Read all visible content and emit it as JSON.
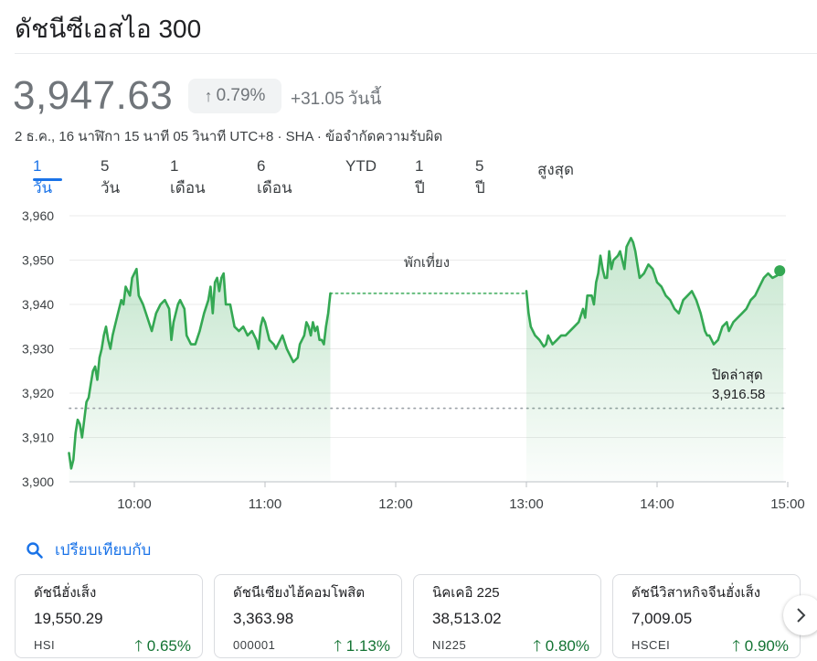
{
  "title": "ดัชนีซีเอสไอ 300",
  "quote": {
    "price": "3,947.63",
    "change_pct": "0.79%",
    "change_abs": "+31.05",
    "change_period": "วันนี้",
    "meta": "2 ธ.ค., 16 นาฬิกา 15 นาที 05 วินาที UTC+8 · SHA · ข้อจำกัดความรับผิด"
  },
  "tabs": [
    "1 วัน",
    "5 วัน",
    "1 เดือน",
    "6 เดือน",
    "YTD",
    "1 ปี",
    "5 ปี",
    "สูงสุด"
  ],
  "active_tab": "1 วัน",
  "chart_data": {
    "type": "line",
    "ylim": [
      3900,
      3960
    ],
    "y_ticks": [
      "3,960",
      "3,950",
      "3,940",
      "3,930",
      "3,920",
      "3,910",
      "3,900"
    ],
    "x_ticks": [
      "10:00",
      "11:00",
      "12:00",
      "13:00",
      "14:00",
      "15:00"
    ],
    "lunch_label": "พักเที่ยง",
    "prev_close_label": "ปิดล่าสุด",
    "prev_close_value": "3,916.58",
    "prev_close": 3916.58,
    "line_color": "#34a853",
    "morning": [
      [
        "09:30",
        3906.5
      ],
      [
        "09:31",
        3903
      ],
      [
        "09:32",
        3905
      ],
      [
        "09:33",
        3911
      ],
      [
        "09:34",
        3914
      ],
      [
        "09:35",
        3913
      ],
      [
        "09:36",
        3910
      ],
      [
        "09:37",
        3914
      ],
      [
        "09:38",
        3918
      ],
      [
        "09:39",
        3919
      ],
      [
        "09:40",
        3922
      ],
      [
        "09:41",
        3925
      ],
      [
        "09:42",
        3926
      ],
      [
        "09:43",
        3923
      ],
      [
        "09:44",
        3928
      ],
      [
        "09:45",
        3930
      ],
      [
        "09:46",
        3933
      ],
      [
        "09:47",
        3935
      ],
      [
        "09:48",
        3932
      ],
      [
        "09:49",
        3930
      ],
      [
        "09:50",
        3933
      ],
      [
        "09:51",
        3935
      ],
      [
        "09:52",
        3937
      ],
      [
        "09:53",
        3939
      ],
      [
        "09:54",
        3941
      ],
      [
        "09:55",
        3940
      ],
      [
        "09:56",
        3944
      ],
      [
        "09:57",
        3943
      ],
      [
        "09:58",
        3942
      ],
      [
        "09:59",
        3946
      ],
      [
        "10:01",
        3948
      ],
      [
        "10:02",
        3942
      ],
      [
        "10:04",
        3940
      ],
      [
        "10:06",
        3937
      ],
      [
        "10:08",
        3934
      ],
      [
        "10:10",
        3938
      ],
      [
        "10:12",
        3940
      ],
      [
        "10:14",
        3941
      ],
      [
        "10:16",
        3939
      ],
      [
        "10:17",
        3932
      ],
      [
        "10:18",
        3936
      ],
      [
        "10:20",
        3940
      ],
      [
        "10:21",
        3941
      ],
      [
        "10:23",
        3939
      ],
      [
        "10:24",
        3933
      ],
      [
        "10:26",
        3931
      ],
      [
        "10:28",
        3931
      ],
      [
        "10:30",
        3934
      ],
      [
        "10:32",
        3938
      ],
      [
        "10:34",
        3941
      ],
      [
        "10:35",
        3944
      ],
      [
        "10:36",
        3938
      ],
      [
        "10:37",
        3945
      ],
      [
        "10:38",
        3946
      ],
      [
        "10:39",
        3943
      ],
      [
        "10:40",
        3946
      ],
      [
        "10:41",
        3947
      ],
      [
        "10:42",
        3940
      ],
      [
        "10:44",
        3940
      ],
      [
        "10:46",
        3935
      ],
      [
        "10:48",
        3934
      ],
      [
        "10:50",
        3935
      ],
      [
        "10:52",
        3933
      ],
      [
        "10:54",
        3934
      ],
      [
        "10:56",
        3932
      ],
      [
        "10:57",
        3930
      ],
      [
        "10:58",
        3935
      ],
      [
        "10:59",
        3937
      ],
      [
        "11:00",
        3936
      ],
      [
        "11:02",
        3932
      ],
      [
        "11:04",
        3931
      ],
      [
        "11:05",
        3930
      ],
      [
        "11:06",
        3931
      ],
      [
        "11:08",
        3933
      ],
      [
        "11:10",
        3930
      ],
      [
        "11:12",
        3928
      ],
      [
        "11:13",
        3927
      ],
      [
        "11:15",
        3928
      ],
      [
        "11:16",
        3931
      ],
      [
        "11:18",
        3933
      ],
      [
        "11:19",
        3936
      ],
      [
        "11:20",
        3935
      ],
      [
        "11:21",
        3933
      ],
      [
        "11:22",
        3936
      ],
      [
        "11:23",
        3934
      ],
      [
        "11:24",
        3935
      ],
      [
        "11:25",
        3932
      ],
      [
        "11:26",
        3932
      ],
      [
        "11:27",
        3931
      ],
      [
        "11:28",
        3935
      ],
      [
        "11:29",
        3938
      ],
      [
        "11:30",
        3942.5
      ]
    ],
    "afternoon": [
      [
        "13:00",
        3943
      ],
      [
        "13:01",
        3938
      ],
      [
        "13:02",
        3935
      ],
      [
        "13:04",
        3933
      ],
      [
        "13:06",
        3932
      ],
      [
        "13:08",
        3930.5
      ],
      [
        "13:09",
        3931
      ],
      [
        "13:10",
        3933
      ],
      [
        "13:12",
        3931
      ],
      [
        "13:14",
        3932
      ],
      [
        "13:16",
        3933
      ],
      [
        "13:18",
        3933
      ],
      [
        "13:20",
        3934
      ],
      [
        "13:22",
        3935
      ],
      [
        "13:24",
        3936
      ],
      [
        "13:26",
        3939
      ],
      [
        "13:27",
        3937
      ],
      [
        "13:28",
        3942
      ],
      [
        "13:30",
        3942
      ],
      [
        "13:31",
        3940
      ],
      [
        "13:32",
        3945
      ],
      [
        "13:33",
        3947
      ],
      [
        "13:34",
        3951
      ],
      [
        "13:35",
        3948
      ],
      [
        "13:36",
        3946
      ],
      [
        "13:37",
        3946
      ],
      [
        "13:38",
        3952
      ],
      [
        "13:39",
        3948
      ],
      [
        "13:40",
        3950
      ],
      [
        "13:42",
        3951
      ],
      [
        "13:43",
        3952
      ],
      [
        "13:44",
        3950
      ],
      [
        "13:45",
        3948
      ],
      [
        "13:46",
        3953
      ],
      [
        "13:47",
        3954
      ],
      [
        "13:48",
        3955
      ],
      [
        "13:49",
        3954
      ],
      [
        "13:50",
        3952
      ],
      [
        "13:51",
        3949
      ],
      [
        "13:52",
        3946
      ],
      [
        "13:54",
        3947
      ],
      [
        "13:56",
        3949
      ],
      [
        "13:58",
        3948
      ],
      [
        "14:00",
        3945
      ],
      [
        "14:02",
        3944
      ],
      [
        "14:04",
        3942
      ],
      [
        "14:06",
        3941
      ],
      [
        "14:08",
        3939
      ],
      [
        "14:10",
        3938
      ],
      [
        "14:12",
        3941
      ],
      [
        "14:14",
        3942
      ],
      [
        "14:16",
        3943
      ],
      [
        "14:18",
        3941
      ],
      [
        "14:20",
        3938
      ],
      [
        "14:22",
        3934
      ],
      [
        "14:23",
        3933
      ],
      [
        "14:24",
        3933
      ],
      [
        "14:26",
        3931
      ],
      [
        "14:28",
        3932
      ],
      [
        "14:30",
        3935
      ],
      [
        "14:32",
        3936
      ],
      [
        "14:33",
        3934
      ],
      [
        "14:35",
        3936
      ],
      [
        "14:37",
        3937
      ],
      [
        "14:39",
        3938
      ],
      [
        "14:41",
        3939
      ],
      [
        "14:43",
        3941
      ],
      [
        "14:45",
        3942
      ],
      [
        "14:47",
        3944
      ],
      [
        "14:49",
        3946
      ],
      [
        "14:51",
        3947
      ],
      [
        "14:53",
        3946
      ],
      [
        "14:55",
        3946.5
      ],
      [
        "14:57",
        3947.5
      ],
      [
        "14:58",
        3947.6
      ]
    ]
  },
  "compare": {
    "label": "เปรียบเทียบกับ",
    "cards": [
      {
        "name": "ดัชนีฮั่งเส็ง",
        "value": "19,550.29",
        "ticker": "HSI",
        "change": "0.65%"
      },
      {
        "name": "ดัชนีเซียงไฮ้คอมโพสิต",
        "value": "3,363.98",
        "ticker": "000001",
        "change": "1.13%"
      },
      {
        "name": "นิคเคอิ 225",
        "value": "38,513.02",
        "ticker": "NI225",
        "change": "0.80%"
      },
      {
        "name": "ดัชนีวิสาหกิจจีนฮั่งเส็ง",
        "value": "7,009.05",
        "ticker": "HSCEI",
        "change": "0.90%"
      }
    ]
  }
}
